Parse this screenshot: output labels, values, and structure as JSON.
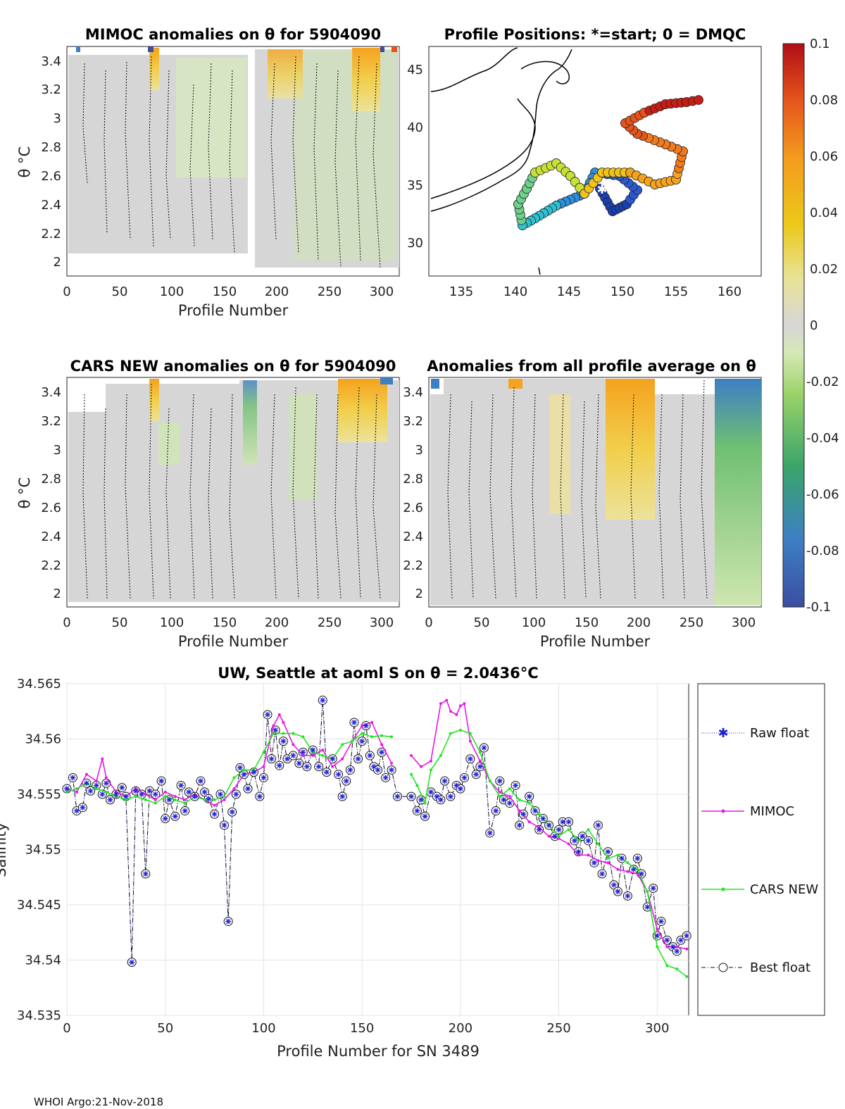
{
  "footer": "WHOI Argo:21-Nov-2018",
  "panels": {
    "mimoc": {
      "title": "MIMOC anomalies on θ  for 5904090",
      "xlabel": "Profile Number",
      "ylabel": "θ °C",
      "xticks": [
        "0",
        "50",
        "100",
        "150",
        "200",
        "250",
        "300"
      ],
      "yticks": [
        "3.4",
        "3.2",
        "3",
        "2.8",
        "2.6",
        "2.4",
        "2.2",
        "2"
      ]
    },
    "map": {
      "title": "Profile Positions: *=start; 0 = DMQC",
      "xticks": [
        "135",
        "140",
        "145",
        "150",
        "155",
        "160"
      ],
      "yticks": [
        "45",
        "40",
        "35",
        "30"
      ]
    },
    "cars": {
      "title": "CARS NEW anomalies on θ for 5904090",
      "xlabel": "Profile Number",
      "ylabel": "θ °C",
      "xticks": [
        "0",
        "50",
        "100",
        "150",
        "200",
        "250",
        "300"
      ],
      "yticks": [
        "3.4",
        "3.2",
        "3",
        "2.8",
        "2.6",
        "2.4",
        "2.2",
        "2"
      ]
    },
    "avg": {
      "title": "Anomalies from all profile average on θ",
      "xlabel": "Profile Number",
      "xticks": [
        "0",
        "50",
        "100",
        "150",
        "200",
        "250",
        "300"
      ],
      "yticks": [
        "3.4",
        "3.2",
        "3",
        "2.8",
        "2.6",
        "2.4",
        "2.2",
        "2"
      ]
    }
  },
  "colorbar": {
    "ticks": [
      "0.1",
      "0.08",
      "0.06",
      "0.04",
      "0.02",
      "0",
      "-0.02",
      "-0.04",
      "-0.06",
      "-0.08",
      "-0.1"
    ]
  },
  "chart_data": {
    "type": "line",
    "title": "UW, Seattle at aoml S on θ = 2.0436°C",
    "xlabel": "Profile Number for SN 3489",
    "ylabel": "Salinity",
    "xlim": [
      0,
      316
    ],
    "ylim": [
      34.535,
      34.565
    ],
    "xticks": [
      "0",
      "50",
      "100",
      "150",
      "200",
      "250",
      "300"
    ],
    "yticks": [
      "34.565",
      "34.56",
      "34.555",
      "34.55",
      "34.545",
      "34.54",
      "34.535"
    ],
    "legend": [
      "Raw float",
      "MIMOC",
      "CARS NEW",
      "Best float"
    ],
    "series": [
      {
        "name": "Raw float",
        "x": [
          0,
          3,
          5,
          8,
          10,
          12,
          15,
          18,
          20,
          22,
          25,
          28,
          30,
          33,
          35,
          38,
          40,
          42,
          45,
          48,
          50,
          52,
          55,
          58,
          60,
          62,
          65,
          68,
          70,
          72,
          75,
          78,
          80,
          82,
          84,
          86,
          88,
          90,
          92,
          95,
          98,
          100,
          102,
          104,
          106,
          108,
          110,
          112,
          115,
          118,
          120,
          122,
          125,
          128,
          130,
          132,
          135,
          138,
          140,
          142,
          144,
          146,
          148,
          150,
          152,
          154,
          156,
          158,
          160,
          162,
          165,
          168,
          175,
          178,
          180,
          182,
          185,
          188,
          190,
          192,
          195,
          198,
          200,
          202,
          205,
          208,
          210,
          212,
          215,
          218,
          220,
          222,
          225,
          228,
          230,
          232,
          235,
          238,
          240,
          242,
          245,
          248,
          250,
          252,
          255,
          258,
          260,
          262,
          265,
          268,
          270,
          272,
          275,
          278,
          280,
          282,
          285,
          288,
          290,
          292,
          295,
          298,
          300,
          302,
          305,
          308,
          310,
          312,
          315
        ],
        "y": [
          34.5555,
          34.5565,
          34.5535,
          34.5538,
          34.556,
          34.5553,
          34.5558,
          34.555,
          34.556,
          34.5545,
          34.555,
          34.5556,
          34.5548,
          34.5398,
          34.5553,
          34.555,
          34.5478,
          34.5553,
          34.555,
          34.5562,
          34.5528,
          34.5545,
          34.553,
          34.5558,
          34.5535,
          34.5552,
          34.5548,
          34.5562,
          34.5552,
          34.5546,
          34.5532,
          34.555,
          34.5522,
          34.5435,
          34.5534,
          34.555,
          34.5574,
          34.5568,
          34.5555,
          34.557,
          34.5548,
          34.5565,
          34.5622,
          34.5582,
          34.5608,
          34.5576,
          34.5598,
          34.5582,
          34.5585,
          34.5578,
          34.5588,
          34.5575,
          34.559,
          34.5575,
          34.5635,
          34.557,
          34.5582,
          34.5568,
          34.5548,
          34.5562,
          34.5572,
          34.5615,
          34.5582,
          34.5598,
          34.5612,
          34.5585,
          34.5575,
          34.5572,
          34.5588,
          34.5565,
          34.5572,
          34.5548,
          34.5548,
          34.5535,
          34.5545,
          34.553,
          34.5552,
          34.5548,
          34.5545,
          34.5562,
          34.5548,
          34.5558,
          34.5555,
          34.5565,
          34.5582,
          34.5568,
          34.5575,
          34.5592,
          34.5515,
          34.5535,
          34.5562,
          34.5545,
          34.5542,
          34.5558,
          34.5522,
          34.5532,
          34.5548,
          34.5535,
          34.5518,
          34.5528,
          34.5522,
          34.5512,
          34.5518,
          34.5525,
          34.5525,
          34.5508,
          34.5498,
          34.5512,
          34.5508,
          34.5488,
          34.5522,
          34.5478,
          34.5498,
          34.5468,
          34.5462,
          34.5492,
          34.5458,
          34.5482,
          34.5492,
          34.5478,
          34.5448,
          34.5465,
          34.5422,
          34.5435,
          34.5418,
          34.5412,
          34.5408,
          34.5418,
          34.5422
        ],
        "style": "dotted-star"
      },
      {
        "name": "MIMOC",
        "x": [
          0,
          5,
          10,
          15,
          18,
          20,
          25,
          30,
          35,
          40,
          45,
          50,
          55,
          60,
          65,
          70,
          75,
          80,
          85,
          90,
          95,
          100,
          105,
          108,
          110,
          115,
          120,
          125,
          130,
          135,
          140,
          145,
          150,
          155,
          160,
          165,
          175,
          180,
          185,
          190,
          193,
          195,
          198,
          200,
          202,
          205,
          210,
          215,
          220,
          225,
          230,
          235,
          240,
          245,
          250,
          255,
          260,
          265,
          270,
          275,
          280,
          285,
          290,
          295,
          300,
          305,
          310,
          315
        ],
        "y": [
          34.5555,
          34.5552,
          34.5568,
          34.5562,
          34.5582,
          34.5565,
          34.5552,
          34.5548,
          34.5555,
          34.555,
          34.5545,
          34.5552,
          34.5548,
          34.5545,
          34.555,
          34.5545,
          34.554,
          34.5545,
          34.5555,
          34.5568,
          34.557,
          34.5575,
          34.5612,
          34.5622,
          34.5615,
          34.5595,
          34.5585,
          34.5585,
          34.559,
          34.5575,
          34.5582,
          34.5598,
          34.5612,
          34.5615,
          34.5595,
          34.5578,
          34.5585,
          34.5575,
          34.558,
          34.5632,
          34.5635,
          34.5625,
          34.5622,
          34.563,
          34.5632,
          34.5598,
          34.558,
          34.5562,
          34.5552,
          34.5548,
          34.5535,
          34.5525,
          34.552,
          34.5512,
          34.551,
          34.5505,
          34.5495,
          34.5495,
          34.549,
          34.5488,
          34.5482,
          34.548,
          34.5478,
          34.5462,
          34.5428,
          34.5412,
          34.5412,
          34.541
        ],
        "style": "solid-dot"
      },
      {
        "name": "CARS NEW",
        "x": [
          0,
          5,
          10,
          15,
          20,
          25,
          30,
          35,
          40,
          45,
          50,
          55,
          60,
          65,
          70,
          75,
          80,
          85,
          90,
          95,
          100,
          105,
          110,
          115,
          120,
          125,
          130,
          135,
          140,
          145,
          150,
          155,
          160,
          165,
          175,
          178,
          182,
          185,
          190,
          195,
          200,
          205,
          210,
          215,
          220,
          225,
          230,
          235,
          240,
          245,
          250,
          255,
          260,
          265,
          270,
          275,
          280,
          285,
          290,
          295,
          300,
          305,
          310,
          315
        ],
        "y": [
          34.5552,
          34.5555,
          34.556,
          34.5555,
          34.5552,
          34.5548,
          34.5545,
          34.5548,
          34.5545,
          34.5542,
          34.5548,
          34.5545,
          34.5542,
          34.5548,
          34.5545,
          34.5545,
          34.5548,
          34.5565,
          34.5572,
          34.5572,
          34.5588,
          34.5605,
          34.5605,
          34.5605,
          34.5602,
          34.5588,
          34.5585,
          34.5582,
          34.5595,
          34.5598,
          34.5605,
          34.5602,
          34.5603,
          34.5602,
          34.5568,
          34.5558,
          34.5542,
          34.5572,
          34.5585,
          34.5605,
          34.5608,
          34.5605,
          34.5588,
          34.5562,
          34.5548,
          34.5555,
          34.5545,
          34.5542,
          34.5532,
          34.5522,
          34.5512,
          34.5518,
          34.5508,
          34.5518,
          34.5505,
          34.5492,
          34.5495,
          34.5488,
          34.5482,
          34.5462,
          34.5412,
          34.5395,
          34.5392,
          34.5385
        ],
        "style": "solid-dot"
      },
      {
        "name": "Best float",
        "x": [
          0,
          3,
          5,
          8,
          10,
          12,
          15,
          18,
          20,
          22,
          25,
          28,
          30,
          33,
          35,
          38,
          40,
          42,
          45,
          48,
          50,
          52,
          55,
          58,
          60,
          62,
          65,
          68,
          70,
          72,
          75,
          78,
          80,
          82,
          84,
          86,
          88,
          90,
          92,
          95,
          98,
          100,
          102,
          104,
          106,
          108,
          110,
          112,
          115,
          118,
          120,
          122,
          125,
          128,
          130,
          132,
          135,
          138,
          140,
          142,
          144,
          146,
          148,
          150,
          152,
          154,
          156,
          158,
          160,
          162,
          165,
          168,
          175,
          178,
          180,
          182,
          185,
          188,
          190,
          192,
          195,
          198,
          200,
          202,
          205,
          208,
          210,
          212,
          215,
          218,
          220,
          222,
          225,
          228,
          230,
          232,
          235,
          238,
          240,
          242,
          245,
          248,
          250,
          252,
          255,
          258,
          260,
          262,
          265,
          268,
          270,
          272,
          275,
          278,
          280,
          282,
          285,
          288,
          290,
          292,
          295,
          298,
          300,
          302,
          305,
          308,
          310,
          312,
          315
        ],
        "y": [
          34.5555,
          34.5565,
          34.5535,
          34.5538,
          34.556,
          34.5553,
          34.5558,
          34.555,
          34.556,
          34.5545,
          34.555,
          34.5556,
          34.5548,
          34.5398,
          34.5553,
          34.555,
          34.5478,
          34.5553,
          34.555,
          34.5562,
          34.5528,
          34.5545,
          34.553,
          34.5558,
          34.5535,
          34.5552,
          34.5548,
          34.5562,
          34.5552,
          34.5546,
          34.5532,
          34.555,
          34.5522,
          34.5435,
          34.5534,
          34.555,
          34.5574,
          34.5568,
          34.5555,
          34.557,
          34.5548,
          34.5565,
          34.5622,
          34.5582,
          34.5608,
          34.5576,
          34.5598,
          34.5582,
          34.5585,
          34.5578,
          34.5588,
          34.5575,
          34.559,
          34.5575,
          34.5635,
          34.557,
          34.5582,
          34.5568,
          34.5548,
          34.5562,
          34.5572,
          34.5615,
          34.5582,
          34.5598,
          34.5612,
          34.5585,
          34.5575,
          34.5572,
          34.5588,
          34.5565,
          34.5572,
          34.5548,
          34.5548,
          34.5535,
          34.5545,
          34.553,
          34.5552,
          34.5548,
          34.5545,
          34.5562,
          34.5548,
          34.5558,
          34.5555,
          34.5565,
          34.5582,
          34.5568,
          34.5575,
          34.5592,
          34.5515,
          34.5535,
          34.5562,
          34.5545,
          34.5542,
          34.5558,
          34.5522,
          34.5532,
          34.5548,
          34.5535,
          34.5518,
          34.5528,
          34.5522,
          34.5512,
          34.5518,
          34.5525,
          34.5525,
          34.5508,
          34.5498,
          34.5512,
          34.5508,
          34.5488,
          34.5522,
          34.5478,
          34.5498,
          34.5468,
          34.5462,
          34.5492,
          34.5458,
          34.5482,
          34.5492,
          34.5478,
          34.5448,
          34.5465,
          34.5422,
          34.5435,
          34.5418,
          34.5412,
          34.5408,
          34.5418,
          34.5422
        ],
        "style": "dashdot-circle"
      }
    ]
  }
}
